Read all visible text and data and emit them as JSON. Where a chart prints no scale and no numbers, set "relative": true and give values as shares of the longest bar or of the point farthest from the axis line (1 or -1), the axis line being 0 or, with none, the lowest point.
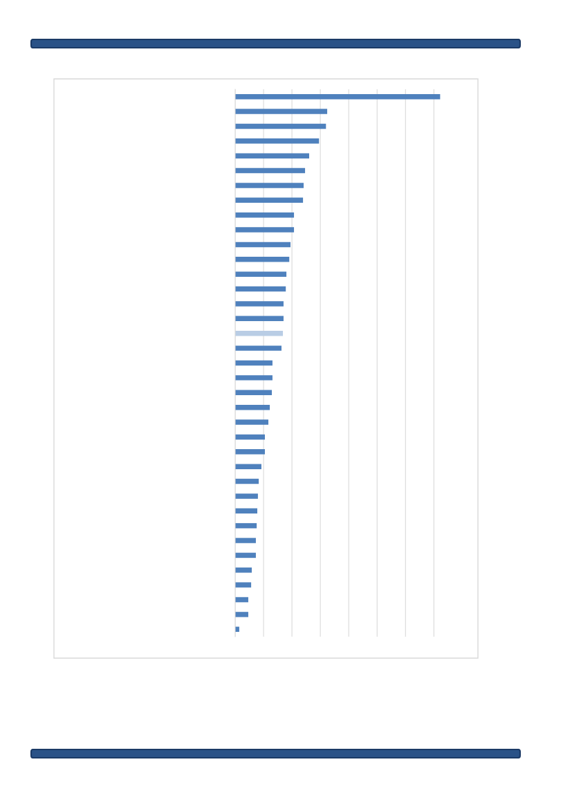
{
  "chart_data": {
    "type": "bar",
    "orientation": "horizontal",
    "relative": true,
    "grid": "x",
    "categories": [
      null,
      null,
      null,
      null,
      null,
      null,
      null,
      null,
      null,
      null,
      null,
      null,
      null,
      null,
      null,
      null,
      null,
      null,
      null,
      null,
      null,
      null,
      null,
      null,
      null,
      null,
      null,
      null,
      null,
      null,
      null,
      null,
      null,
      null,
      null,
      null,
      null
    ],
    "values": [
      1,
      0.449,
      0.443,
      0.409,
      0.361,
      0.341,
      0.334,
      0.331,
      0.287,
      0.287,
      0.27,
      0.264,
      0.25,
      0.247,
      0.236,
      0.236,
      0.233,
      0.226,
      0.182,
      0.182,
      0.179,
      0.169,
      0.162,
      0.145,
      0.145,
      0.128,
      0.115,
      0.111,
      0.108,
      0.105,
      0.101,
      0.101,
      0.081,
      0.078,
      0.064,
      0.064,
      0.02
    ],
    "colors": [
      "#4f81bd",
      "#4f81bd",
      "#4f81bd",
      "#4f81bd",
      "#4f81bd",
      "#4f81bd",
      "#4f81bd",
      "#4f81bd",
      "#4f81bd",
      "#4f81bd",
      "#4f81bd",
      "#4f81bd",
      "#4f81bd",
      "#4f81bd",
      "#4f81bd",
      "#4f81bd",
      "#b9cde5",
      "#4f81bd",
      "#4f81bd",
      "#4f81bd",
      "#4f81bd",
      "#4f81bd",
      "#4f81bd",
      "#4f81bd",
      "#4f81bd",
      "#4f81bd",
      "#4f81bd",
      "#4f81bd",
      "#4f81bd",
      "#4f81bd",
      "#4f81bd",
      "#4f81bd",
      "#4f81bd",
      "#4f81bd",
      "#4f81bd",
      "#4f81bd",
      "#4f81bd"
    ]
  }
}
